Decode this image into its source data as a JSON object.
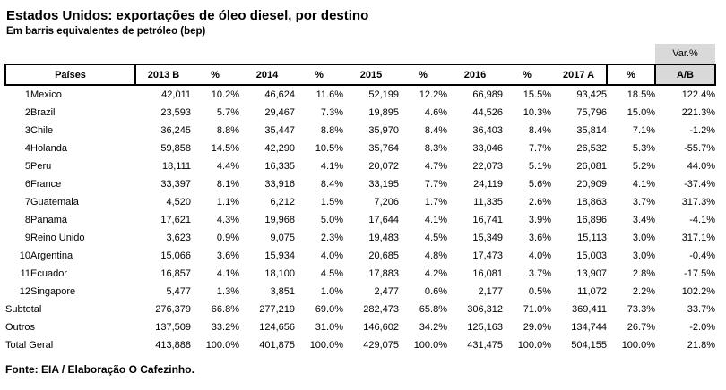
{
  "title": "Estados Unidos: exportações de óleo diesel, por destino",
  "subtitle": "Em barris equivalentes de petróleo (bep)",
  "footer": "Fonte: EIA / Elaboração O Cafezinho.",
  "colors": {
    "header_fill": "#d9d9d9",
    "border": "#000000",
    "text": "#000000",
    "background": "#ffffff"
  },
  "table": {
    "var_label_top": "Var.%",
    "var_label_bottom": "A/B",
    "columns": [
      "Países",
      "2013 B",
      "%",
      "2014",
      "%",
      "2015",
      "%",
      "2016",
      "%",
      "2017 A",
      "%"
    ],
    "rows": [
      {
        "rank": "1",
        "country": "Mexico",
        "values": [
          "42,011",
          "10.2%",
          "46,624",
          "11.6%",
          "52,199",
          "12.2%",
          "66,989",
          "15.5%",
          "93,425",
          "18.5%",
          "122.4%"
        ]
      },
      {
        "rank": "2",
        "country": "Brazil",
        "values": [
          "23,593",
          "5.7%",
          "29,467",
          "7.3%",
          "19,895",
          "4.6%",
          "44,526",
          "10.3%",
          "75,796",
          "15.0%",
          "221.3%"
        ]
      },
      {
        "rank": "3",
        "country": "Chile",
        "values": [
          "36,245",
          "8.8%",
          "35,447",
          "8.8%",
          "35,970",
          "8.4%",
          "36,403",
          "8.4%",
          "35,814",
          "7.1%",
          "-1.2%"
        ]
      },
      {
        "rank": "4",
        "country": "Holanda",
        "values": [
          "59,858",
          "14.5%",
          "42,290",
          "10.5%",
          "35,764",
          "8.3%",
          "33,046",
          "7.7%",
          "26,532",
          "5.3%",
          "-55.7%"
        ]
      },
      {
        "rank": "5",
        "country": "Peru",
        "values": [
          "18,111",
          "4.4%",
          "16,335",
          "4.1%",
          "20,072",
          "4.7%",
          "22,073",
          "5.1%",
          "26,081",
          "5.2%",
          "44.0%"
        ]
      },
      {
        "rank": "6",
        "country": "France",
        "values": [
          "33,397",
          "8.1%",
          "33,916",
          "8.4%",
          "33,195",
          "7.7%",
          "24,119",
          "5.6%",
          "20,909",
          "4.1%",
          "-37.4%"
        ]
      },
      {
        "rank": "7",
        "country": "Guatemala",
        "values": [
          "4,520",
          "1.1%",
          "6,212",
          "1.5%",
          "7,206",
          "1.7%",
          "11,335",
          "2.6%",
          "18,863",
          "3.7%",
          "317.3%"
        ]
      },
      {
        "rank": "8",
        "country": "Panama",
        "values": [
          "17,621",
          "4.3%",
          "19,968",
          "5.0%",
          "17,644",
          "4.1%",
          "16,741",
          "3.9%",
          "16,896",
          "3.4%",
          "-4.1%"
        ]
      },
      {
        "rank": "9",
        "country": "Reino Unido",
        "values": [
          "3,623",
          "0.9%",
          "9,075",
          "2.3%",
          "19,483",
          "4.5%",
          "15,349",
          "3.6%",
          "15,113",
          "3.0%",
          "317.1%"
        ]
      },
      {
        "rank": "10",
        "country": "Argentina",
        "values": [
          "15,066",
          "3.6%",
          "15,934",
          "4.0%",
          "20,685",
          "4.8%",
          "17,473",
          "4.0%",
          "15,003",
          "3.0%",
          "-0.4%"
        ]
      },
      {
        "rank": "11",
        "country": "Ecuador",
        "values": [
          "16,857",
          "4.1%",
          "18,100",
          "4.5%",
          "17,883",
          "4.2%",
          "16,081",
          "3.7%",
          "13,907",
          "2.8%",
          "-17.5%"
        ]
      },
      {
        "rank": "12",
        "country": "Singapore",
        "values": [
          "5,477",
          "1.3%",
          "3,851",
          "1.0%",
          "2,477",
          "0.6%",
          "2,177",
          "0.5%",
          "11,072",
          "2.2%",
          "102.2%"
        ]
      }
    ],
    "summary_rows": [
      {
        "label": "Subtotal",
        "values": [
          "276,379",
          "66.8%",
          "277,219",
          "69.0%",
          "282,473",
          "65.8%",
          "306,312",
          "71.0%",
          "369,411",
          "73.3%",
          "33.7%"
        ]
      },
      {
        "label": "Outros",
        "values": [
          "137,509",
          "33.2%",
          "124,656",
          "31.0%",
          "146,602",
          "34.2%",
          "125,163",
          "29.0%",
          "134,744",
          "26.7%",
          "-2.0%"
        ]
      },
      {
        "label": "Total Geral",
        "values": [
          "413,888",
          "100.0%",
          "401,875",
          "100.0%",
          "429,075",
          "100.0%",
          "431,475",
          "100.0%",
          "504,155",
          "100.0%",
          "21.8%"
        ]
      }
    ]
  }
}
